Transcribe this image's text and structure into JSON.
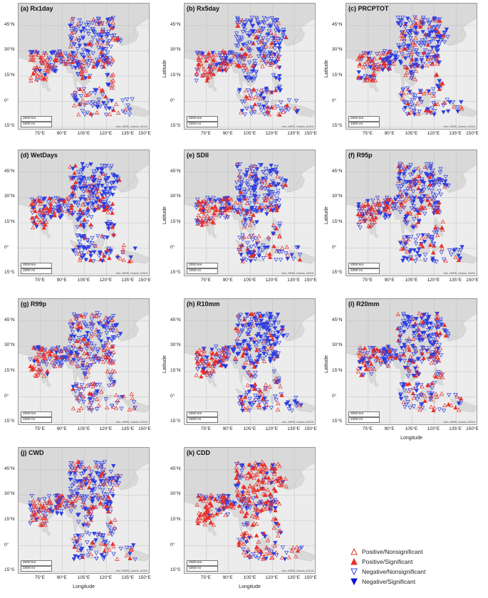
{
  "panels": [
    {
      "label": "(a)  Rx1day",
      "red_frac": 0.4,
      "blue_frac": 0.6,
      "sig_frac": 0.15
    },
    {
      "label": "(b)  Rx5day",
      "red_frac": 0.38,
      "blue_frac": 0.62,
      "sig_frac": 0.2
    },
    {
      "label": "(c)  PRCPTOT",
      "red_frac": 0.35,
      "blue_frac": 0.65,
      "sig_frac": 0.3
    },
    {
      "label": "(d)  WetDays",
      "red_frac": 0.3,
      "blue_frac": 0.7,
      "sig_frac": 0.4
    },
    {
      "label": "(e)  SDII",
      "red_frac": 0.35,
      "blue_frac": 0.65,
      "sig_frac": 0.3
    },
    {
      "label": "(f)  R95p",
      "red_frac": 0.38,
      "blue_frac": 0.62,
      "sig_frac": 0.25
    },
    {
      "label": "(g)  R99p",
      "red_frac": 0.42,
      "blue_frac": 0.58,
      "sig_frac": 0.15
    },
    {
      "label": "(h)  R10mm",
      "red_frac": 0.3,
      "blue_frac": 0.7,
      "sig_frac": 0.4
    },
    {
      "label": "(i)  R20mm",
      "red_frac": 0.38,
      "blue_frac": 0.62,
      "sig_frac": 0.3
    },
    {
      "label": "(j)  CWD",
      "red_frac": 0.4,
      "blue_frac": 0.6,
      "sig_frac": 0.2
    },
    {
      "label": "(k)  CDD",
      "red_frac": 0.65,
      "blue_frac": 0.35,
      "sig_frac": 0.3
    }
  ],
  "axes": {
    "lat_ticks": [
      "45°N",
      "30°N",
      "15°N",
      "0°",
      "15°S"
    ],
    "lon_ticks": [
      "75°E",
      "90°E",
      "105°E",
      "120°E",
      "135°E",
      "150°E"
    ],
    "lat_label": "Latitude",
    "lon_label": "Longitude",
    "scale_km": "2000 km",
    "scale_mi": "1000 mi",
    "attribution": "Esri, HERE, Garmin, USGS"
  },
  "legend": [
    {
      "label": "Positive/Nonsignificant",
      "symbol": "triangle-up-open",
      "color": "#e8302a"
    },
    {
      "label": "Positive/Significant",
      "symbol": "triangle-up-filled",
      "color": "#e8302a"
    },
    {
      "label": "Negative/Nonsignificant",
      "symbol": "triangle-down-open",
      "color": "#2f3fe0"
    },
    {
      "label": "Negative/Significant",
      "symbol": "triangle-down-filled",
      "color": "#1010d8"
    }
  ],
  "colors": {
    "positive": "#e8302a",
    "negative": "#2f3fe0",
    "land": "#d9d9d9",
    "sea": "#ececec"
  }
}
